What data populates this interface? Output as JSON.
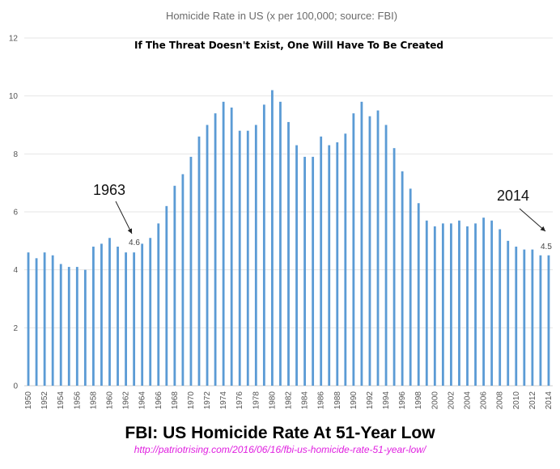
{
  "chart_data": {
    "type": "bar",
    "title": "Homicide Rate in US (x per 100,000; source: FBI)",
    "subtitle": "If The Threat Doesn't Exist, One Will Have To Be Created",
    "ylim": [
      0,
      12
    ],
    "yticks": [
      0,
      2,
      4,
      6,
      8,
      10,
      12
    ],
    "grid": true,
    "bar_color": "#5b9bd5",
    "categories": [
      "1950",
      "1951",
      "1952",
      "1953",
      "1954",
      "1955",
      "1956",
      "1957",
      "1958",
      "1959",
      "1960",
      "1961",
      "1962",
      "1963",
      "1964",
      "1965",
      "1966",
      "1967",
      "1968",
      "1969",
      "1970",
      "1971",
      "1972",
      "1973",
      "1974",
      "1975",
      "1976",
      "1977",
      "1978",
      "1979",
      "1980",
      "1981",
      "1982",
      "1983",
      "1984",
      "1985",
      "1986",
      "1987",
      "1988",
      "1989",
      "1990",
      "1991",
      "1992",
      "1993",
      "1994",
      "1995",
      "1996",
      "1997",
      "1998",
      "1999",
      "2000",
      "2001",
      "2002",
      "2003",
      "2004",
      "2005",
      "2006",
      "2007",
      "2008",
      "2009",
      "2010",
      "2011",
      "2012",
      "2013",
      "2014"
    ],
    "xtick_labels": [
      "1950",
      "1952",
      "1954",
      "1956",
      "1958",
      "1960",
      "1962",
      "1964",
      "1966",
      "1968",
      "1970",
      "1972",
      "1974",
      "1976",
      "1978",
      "1980",
      "1982",
      "1984",
      "1986",
      "1988",
      "1990",
      "1992",
      "1994",
      "1996",
      "1998",
      "2000",
      "2002",
      "2004",
      "2006",
      "2008",
      "2010",
      "2012",
      "2014"
    ],
    "values": [
      4.6,
      4.4,
      4.6,
      4.5,
      4.2,
      4.1,
      4.1,
      4.0,
      4.8,
      4.9,
      5.1,
      4.8,
      4.6,
      4.6,
      4.9,
      5.1,
      5.6,
      6.2,
      6.9,
      7.3,
      7.9,
      8.6,
      9.0,
      9.4,
      9.8,
      9.6,
      8.8,
      8.8,
      9.0,
      9.7,
      10.2,
      9.8,
      9.1,
      8.3,
      7.9,
      7.9,
      8.6,
      8.3,
      8.4,
      8.7,
      9.4,
      9.8,
      9.3,
      9.5,
      9.0,
      8.2,
      7.4,
      6.8,
      6.3,
      5.7,
      5.5,
      5.6,
      5.6,
      5.7,
      5.5,
      5.6,
      5.8,
      5.7,
      5.4,
      5.0,
      4.8,
      4.7,
      4.7,
      4.5,
      4.5
    ],
    "annotations": [
      {
        "year_label": "1963",
        "value_label": "4.6",
        "category": "1963"
      },
      {
        "year_label": "2014",
        "value_label": "4.5",
        "category": "2014"
      }
    ]
  },
  "headline": "FBI: US Homicide Rate At 51-Year Low",
  "source_url": "http://patriotrising.com/2016/06/16/fbi-us-homicide-rate-51-year-low/"
}
